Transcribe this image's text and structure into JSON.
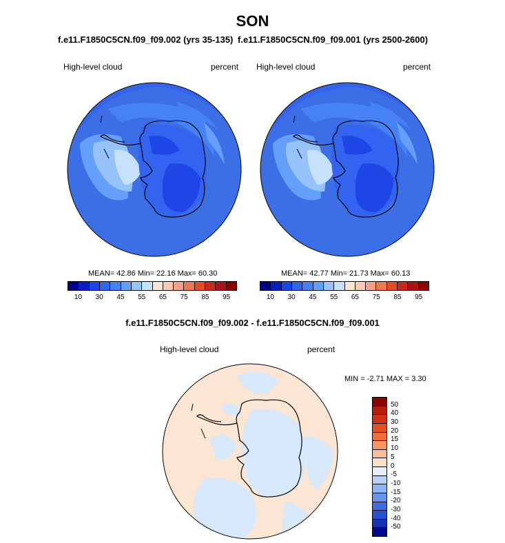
{
  "title": "SON",
  "panels": [
    {
      "run_label": "f.e11.F1850C5CN.f09_f09.002 (yrs 35-135)",
      "variable": "High-level cloud",
      "units": "percent",
      "stats": "MEAN=  42.86  Min=  22.16  Max=  60.30"
    },
    {
      "run_label": "f.e11.F1850C5CN.f09_f09.001 (yrs 2500-2600)",
      "variable": "High-level cloud",
      "units": "percent",
      "stats": "MEAN=  42.77  Min=  21.73  Max=  60.13"
    }
  ],
  "colorbar": {
    "colors": [
      "#00008c",
      "#0a1ec8",
      "#1e46e6",
      "#3264f0",
      "#4682f5",
      "#64a0fa",
      "#96c3fa",
      "#c8e1fa",
      "#fae6d2",
      "#fac8b4",
      "#f5a082",
      "#f07850",
      "#e64b28",
      "#c8281e",
      "#aa1414",
      "#8c0000"
    ],
    "labels": [
      "10",
      "30",
      "45",
      "55",
      "65",
      "75",
      "85",
      "95"
    ]
  },
  "diff": {
    "title": "f.e11.F1850C5CN.f09_f09.002 - f.e11.F1850C5CN.f09_f09.001",
    "variable": "High-level cloud",
    "units": "percent",
    "stats": "MIN =  -2.71 MAX =   3.30",
    "colorbar_colors": [
      "#8c0000",
      "#b41e0a",
      "#d23214",
      "#e6501e",
      "#f06e3c",
      "#f59664",
      "#fabe96",
      "#fae1c8",
      "#e6f0fa",
      "#b4d2fa",
      "#8cb4f5",
      "#6496f0",
      "#3c6ee6",
      "#2850d2",
      "#1432b4",
      "#000a8c"
    ],
    "colorbar_labels": [
      "50",
      "40",
      "30",
      "20",
      "15",
      "10",
      "5",
      "0",
      "-5",
      "-10",
      "-15",
      "-20",
      "-30",
      "-40",
      "-50"
    ]
  }
}
